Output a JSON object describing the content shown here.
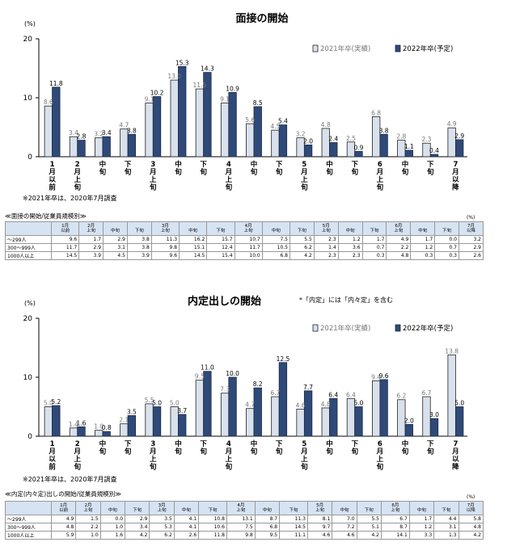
{
  "charts": [
    {
      "title": "面接の開始",
      "note": "",
      "unit": "(%)",
      "y_ticks": [
        "20",
        "10",
        "0"
      ],
      "legend": {
        "prev": "2021年卒(実績)",
        "cur": "2022年卒(予定)"
      },
      "footnote": "※2021年卒は、2020年7月調査",
      "table_title": "≪面接の開始/従業員規模別≫",
      "table_unit": "(%)"
    },
    {
      "title": "内定出しの開始",
      "note": "*「内定」には「内々定」を含む",
      "unit": "(%)",
      "y_ticks": [
        "20",
        "10",
        "0"
      ],
      "legend": {
        "prev": "2021年卒(実績)",
        "cur": "2022年卒(予定)"
      },
      "footnote": "※2021年卒は、2020年7月調査",
      "table_title": "≪内定(内々定)出しの開始/従業員規模別≫",
      "table_unit": "(%)"
    }
  ],
  "categories": [
    "1月以前",
    "2月上旬",
    "中旬",
    "下旬",
    "3月上旬",
    "中旬",
    "下旬",
    "4月上旬",
    "中旬",
    "下旬",
    "5月上旬",
    "中旬",
    "下旬",
    "6月上旬",
    "中旬",
    "下旬",
    "7月以降"
  ],
  "axis_labels": [
    [
      "1",
      "月",
      "以",
      "前"
    ],
    [
      "2",
      "月",
      "上",
      "旬"
    ],
    [
      "中",
      "旬"
    ],
    [
      "下",
      "旬"
    ],
    [
      "3",
      "月",
      "上",
      "旬"
    ],
    [
      "中",
      "旬"
    ],
    [
      "下",
      "旬"
    ],
    [
      "4",
      "月",
      "上",
      "旬"
    ],
    [
      "中",
      "旬"
    ],
    [
      "下",
      "旬"
    ],
    [
      "5",
      "月",
      "上",
      "旬"
    ],
    [
      "中",
      "旬"
    ],
    [
      "下",
      "旬"
    ],
    [
      "6",
      "月",
      "上",
      "旬"
    ],
    [
      "中",
      "旬"
    ],
    [
      "下",
      "旬"
    ],
    [
      "7",
      "月",
      "以",
      "降"
    ]
  ],
  "table_header": [
    "1月|以前",
    "2月|上旬",
    "中旬",
    "下旬",
    "3月|上旬",
    "中旬",
    "下旬",
    "4月|上旬",
    "中旬",
    "下旬",
    "5月|上旬",
    "中旬",
    "下旬",
    "6月|上旬",
    "中旬",
    "下旬",
    "7月|以降"
  ],
  "chart_data": [
    {
      "type": "bar",
      "title": "面接の開始",
      "ylim": [
        0,
        20
      ],
      "grid": false,
      "legend_position": "top-right",
      "colors": {
        "prev": "#d9e1ec",
        "cur": "#2f4a78"
      },
      "series": [
        {
          "name": "2021年卒(実績)",
          "values": [
            8.6,
            3.4,
            3.2,
            4.7,
            9.1,
            13.0,
            11.5,
            9.1,
            5.6,
            4.5,
            3.2,
            4.8,
            2.5,
            6.8,
            2.8,
            2.3,
            4.9
          ]
        },
        {
          "name": "2022年卒(予定)",
          "values": [
            11.8,
            2.8,
            3.4,
            3.8,
            10.2,
            15.3,
            14.3,
            10.9,
            8.5,
            5.4,
            2.0,
            2.4,
            0.9,
            3.8,
            1.1,
            0.4,
            2.9
          ]
        }
      ]
    },
    {
      "type": "bar",
      "title": "内定出しの開始",
      "ylim": [
        0,
        20
      ],
      "grid": false,
      "legend_position": "top-right",
      "colors": {
        "prev": "#d9e1ec",
        "cur": "#2f4a78"
      },
      "series": [
        {
          "name": "2021年卒(実績)",
          "values": [
            5.0,
            1.4,
            1.0,
            2.1,
            5.5,
            5.0,
            9.5,
            7.3,
            4.7,
            6.7,
            4.6,
            4.8,
            6.4,
            9.4,
            6.2,
            6.7,
            13.8
          ]
        },
        {
          "name": "2022年卒(予定)",
          "values": [
            5.2,
            1.6,
            0.8,
            3.5,
            5.0,
            3.7,
            11.0,
            10.0,
            8.2,
            12.5,
            7.7,
            6.4,
            5.0,
            9.6,
            2.0,
            3.0,
            5.0
          ]
        }
      ]
    }
  ],
  "tables": [
    {
      "rows": [
        {
          "label": "～299人",
          "values": [
            "9.6",
            "1.7",
            "2.9",
            "3.8",
            "11.3",
            "16.2",
            "15.7",
            "10.7",
            "7.5",
            "5.5",
            "2.3",
            "1.2",
            "1.7",
            "4.9",
            "1.7",
            "0.0",
            "3.2"
          ]
        },
        {
          "label": "300～999人",
          "values": [
            "11.7",
            "2.9",
            "3.1",
            "3.8",
            "9.8",
            "15.1",
            "12.4",
            "11.7",
            "10.5",
            "6.2",
            "1.4",
            "3.6",
            "0.7",
            "2.2",
            "1.2",
            "0.7",
            "2.9"
          ]
        },
        {
          "label": "1000人以上",
          "values": [
            "14.5",
            "3.9",
            "4.5",
            "3.9",
            "9.6",
            "14.5",
            "15.4",
            "10.0",
            "6.8",
            "4.2",
            "2.3",
            "2.3",
            "0.3",
            "4.8",
            "0.3",
            "0.3",
            "2.6"
          ]
        }
      ]
    },
    {
      "rows": [
        {
          "label": "～299人",
          "values": [
            "4.9",
            "1.5",
            "0.0",
            "2.9",
            "3.5",
            "4.1",
            "10.8",
            "13.1",
            "8.7",
            "11.3",
            "8.1",
            "7.0",
            "5.5",
            "6.7",
            "1.7",
            "4.4",
            "5.8"
          ]
        },
        {
          "label": "300～999人",
          "values": [
            "4.8",
            "2.2",
            "1.0",
            "3.4",
            "5.3",
            "4.1",
            "10.6",
            "7.5",
            "6.8",
            "14.5",
            "9.7",
            "7.2",
            "5.1",
            "8.7",
            "1.2",
            "3.1",
            "4.8"
          ]
        },
        {
          "label": "1000人以上",
          "values": [
            "5.9",
            "1.0",
            "1.6",
            "4.2",
            "6.2",
            "2.6",
            "11.8",
            "9.8",
            "9.5",
            "11.1",
            "4.6",
            "4.6",
            "4.2",
            "14.1",
            "3.3",
            "1.3",
            "4.2"
          ]
        }
      ]
    }
  ]
}
